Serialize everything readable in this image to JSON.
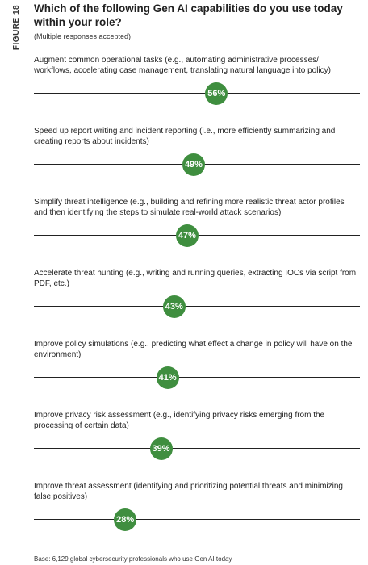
{
  "figure_label": "FIGURE 18",
  "chart_data": {
    "type": "dot",
    "title": "Which of the following Gen AI capabilities do you use today within your role?",
    "subtitle": "(Multiple responses accepted)",
    "xlim": [
      0,
      100
    ],
    "categories": [
      "Augment common operational tasks (e.g., automating administrative processes/ workflows, accelerating case management, translating natural language into policy)",
      "Speed up report writing and incident reporting (i.e., more efficiently summarizing and creating reports about incidents)",
      "Simplify threat intelligence (e.g., building and refining more realistic threat actor profiles and then identifying the steps to simulate real-world attack scenarios)",
      "Accelerate threat hunting (e.g., writing and running queries, extracting IOCs via script from PDF, etc.)",
      "Improve policy simulations (e.g., predicting what effect a change in policy will have on the environment)",
      "Improve privacy risk assessment (e.g., identifying privacy risks emerging from the processing of certain data)",
      "Improve threat assessment (identifying and prioritizing potential threats and minimizing false positives)"
    ],
    "values": [
      56,
      49,
      47,
      43,
      41,
      39,
      28
    ],
    "value_labels": [
      "56%",
      "49%",
      "47%",
      "43%",
      "41%",
      "39%",
      "28%"
    ],
    "color": "#3f8e3f"
  },
  "base_note": "Base: 6,129 global cybersecurity professionals who use Gen AI today"
}
